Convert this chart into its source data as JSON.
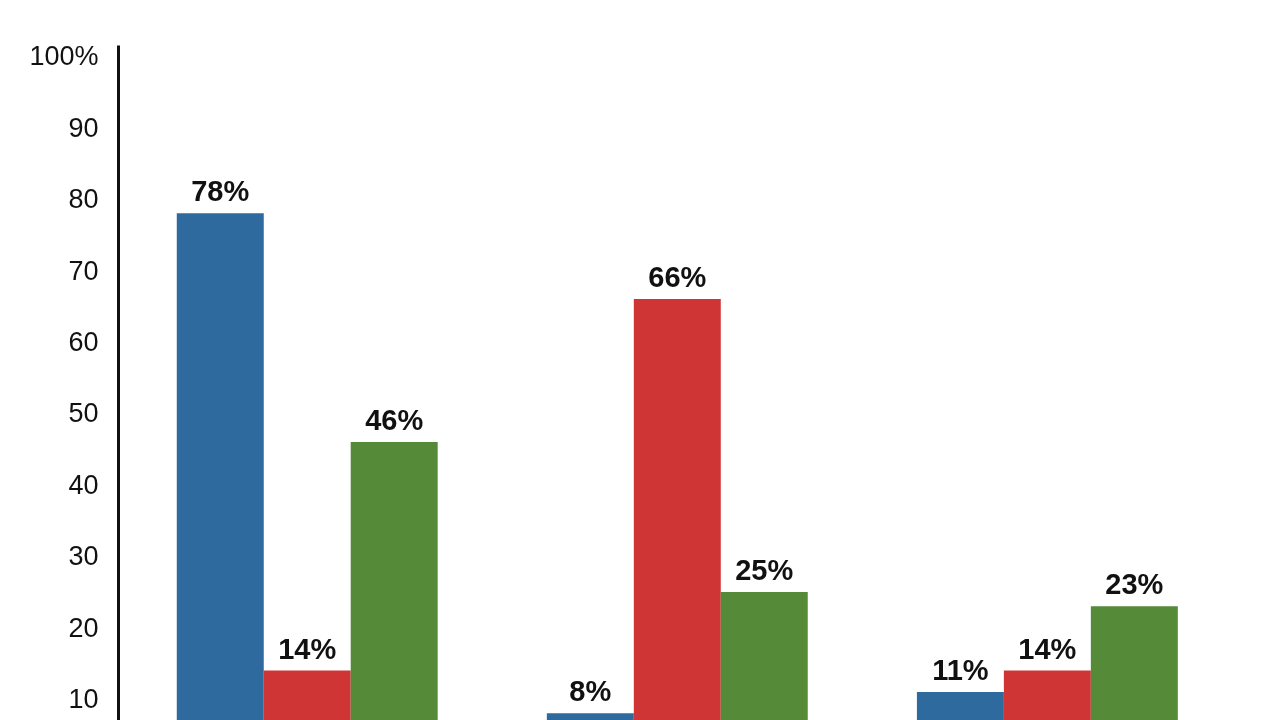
{
  "chart_data": {
    "type": "bar",
    "categories": [
      null,
      null,
      null
    ],
    "series": [
      {
        "color": "#2e6a9e",
        "values": [
          78,
          8,
          11
        ],
        "value_labels": [
          "78%",
          "8%",
          "11%"
        ]
      },
      {
        "color": "#d03535",
        "values": [
          14,
          66,
          14
        ],
        "value_labels": [
          "14%",
          "66%",
          "14%"
        ]
      },
      {
        "color": "#548a38",
        "values": [
          46,
          25,
          23
        ],
        "value_labels": [
          "46%",
          "25%",
          "23%"
        ]
      }
    ],
    "ylim": [
      7,
      101.5
    ],
    "yticks": [
      10,
      20,
      30,
      40,
      50,
      60,
      70,
      80,
      90,
      {
        "value": 100,
        "label": "100%"
      }
    ],
    "tick_labels": "y",
    "grid": false
  }
}
